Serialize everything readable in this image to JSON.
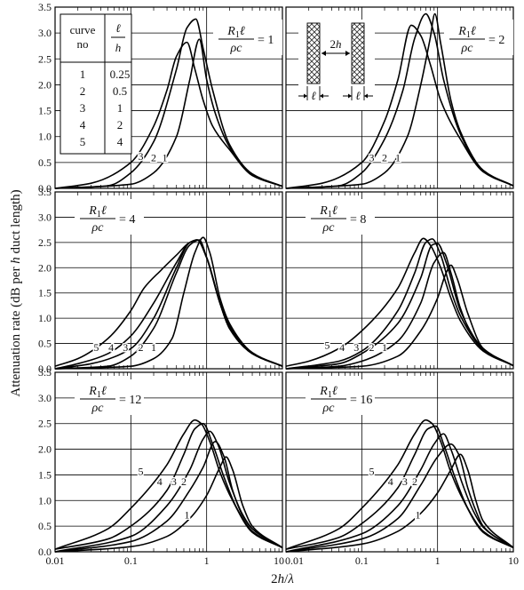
{
  "figure": {
    "ylabel_parts": [
      "Attenuation rate (dB per ",
      "h",
      " duct length)"
    ],
    "xlabel_parts": [
      "2",
      "h",
      "/",
      "λ"
    ],
    "x_tick_labels": [
      "0.01",
      "0.1",
      "1",
      "10"
    ],
    "y_tick_labels": [
      "0.0",
      "0.5",
      "1.0",
      "1.5",
      "2.0",
      "2.5",
      "3.0",
      "3.5"
    ],
    "param_eq": "=",
    "param_num_parts": [
      "R",
      "1",
      "ℓ"
    ],
    "param_den": "ρc"
  },
  "legend_table": {
    "col1_header_lines": [
      "curve",
      "no"
    ],
    "col2_header_num": "ℓ",
    "col2_header_den": "h",
    "rows": [
      {
        "curve": "1",
        "ratio": "0.25"
      },
      {
        "curve": "2",
        "ratio": "0.5"
      },
      {
        "curve": "3",
        "ratio": "1"
      },
      {
        "curve": "4",
        "ratio": "2"
      },
      {
        "curve": "5",
        "ratio": "4"
      }
    ]
  },
  "duct_diagram": {
    "width_label_parts": [
      "2",
      "h"
    ],
    "liner_label": "ℓ",
    "hatch_color": "#333333"
  },
  "chart_data": [
    {
      "type": "line",
      "panel": "top-left",
      "param_value": "1",
      "x_scale": "log",
      "xlim": [
        0.01,
        10
      ],
      "ylim": [
        0,
        3.5
      ],
      "grid": true,
      "series": [
        {
          "name": "1",
          "x": [
            0.01,
            0.1,
            0.2,
            0.4,
            0.6,
            0.8,
            1.0,
            1.3,
            2,
            4,
            10
          ],
          "y": [
            0.0,
            0.08,
            0.3,
            1.0,
            2.1,
            2.88,
            2.1,
            1.45,
            0.8,
            0.25,
            0.04
          ]
        },
        {
          "name": "2",
          "x": [
            0.01,
            0.05,
            0.1,
            0.2,
            0.4,
            0.55,
            0.72,
            0.9,
            1.2,
            2,
            4,
            10
          ],
          "y": [
            0.0,
            0.05,
            0.3,
            0.9,
            2.3,
            3.1,
            3.27,
            2.7,
            1.9,
            0.85,
            0.28,
            0.04
          ]
        },
        {
          "name": "3",
          "x": [
            0.01,
            0.03,
            0.1,
            0.2,
            0.3,
            0.4,
            0.55,
            0.7,
            0.9,
            1.2,
            2,
            4,
            10
          ],
          "y": [
            0.0,
            0.1,
            0.5,
            1.2,
            1.9,
            2.55,
            2.82,
            2.3,
            1.7,
            1.2,
            0.75,
            0.25,
            0.04
          ]
        }
      ],
      "curve_labels": [
        {
          "text": "1",
          "x": 0.28,
          "y": 0.52
        },
        {
          "text": "2",
          "x": 0.2,
          "y": 0.52
        },
        {
          "text": "3",
          "x": 0.135,
          "y": 0.55
        }
      ]
    },
    {
      "type": "line",
      "panel": "top-right",
      "param_value": "2",
      "x_scale": "log",
      "xlim": [
        0.01,
        10
      ],
      "ylim": [
        0,
        3.5
      ],
      "grid": true,
      "series": [
        {
          "name": "1",
          "x": [
            0.01,
            0.1,
            0.2,
            0.4,
            0.6,
            0.8,
            0.92,
            1.1,
            1.5,
            2,
            4,
            10
          ],
          "y": [
            0.0,
            0.08,
            0.3,
            1.0,
            2.0,
            2.9,
            3.37,
            2.8,
            1.7,
            1.1,
            0.35,
            0.05
          ]
        },
        {
          "name": "2",
          "x": [
            0.01,
            0.05,
            0.1,
            0.2,
            0.35,
            0.5,
            0.7,
            0.9,
            1.2,
            2,
            4,
            10
          ],
          "y": [
            0.0,
            0.05,
            0.3,
            0.95,
            1.9,
            2.9,
            3.37,
            3.0,
            2.1,
            1.05,
            0.33,
            0.05
          ]
        },
        {
          "name": "3",
          "x": [
            0.01,
            0.03,
            0.1,
            0.2,
            0.3,
            0.45,
            0.6,
            0.8,
            1.1,
            2,
            4,
            10
          ],
          "y": [
            0.0,
            0.1,
            0.5,
            1.3,
            2.1,
            3.15,
            2.95,
            2.4,
            1.7,
            0.95,
            0.32,
            0.05
          ]
        }
      ],
      "curve_labels": [
        {
          "text": "1",
          "x": 0.3,
          "y": 0.52
        },
        {
          "text": "2",
          "x": 0.2,
          "y": 0.52
        },
        {
          "text": "3",
          "x": 0.135,
          "y": 0.52
        }
      ]
    },
    {
      "type": "line",
      "panel": "middle-left",
      "param_value": "4",
      "x_scale": "log",
      "xlim": [
        0.01,
        10
      ],
      "ylim": [
        0,
        3.5
      ],
      "grid": true,
      "series": [
        {
          "name": "1",
          "x": [
            0.01,
            0.1,
            0.2,
            0.35,
            0.5,
            0.7,
            0.9,
            1.1,
            1.5,
            2,
            4,
            10
          ],
          "y": [
            0.0,
            0.05,
            0.2,
            0.6,
            1.5,
            2.3,
            2.6,
            2.3,
            1.4,
            0.9,
            0.32,
            0.05
          ]
        },
        {
          "name": "2",
          "x": [
            0.01,
            0.05,
            0.1,
            0.2,
            0.4,
            0.6,
            0.8,
            1.0,
            1.5,
            2,
            4,
            10
          ],
          "y": [
            0.0,
            0.05,
            0.25,
            0.8,
            1.9,
            2.45,
            2.55,
            2.2,
            1.3,
            0.85,
            0.3,
            0.05
          ]
        },
        {
          "name": "3",
          "x": [
            0.01,
            0.03,
            0.1,
            0.2,
            0.4,
            0.6,
            0.75,
            1.0,
            1.5,
            2,
            4,
            10
          ],
          "y": [
            0.0,
            0.1,
            0.4,
            1.0,
            2.0,
            2.5,
            2.55,
            2.2,
            1.3,
            0.8,
            0.3,
            0.05
          ]
        },
        {
          "name": "4",
          "x": [
            0.01,
            0.02,
            0.05,
            0.1,
            0.2,
            0.4,
            0.6,
            0.75,
            1.0,
            1.5,
            2,
            4,
            10
          ],
          "y": [
            0.0,
            0.1,
            0.3,
            0.65,
            1.3,
            2.1,
            2.5,
            2.55,
            2.2,
            1.3,
            0.8,
            0.3,
            0.05
          ]
        },
        {
          "name": "5",
          "x": [
            0.01,
            0.02,
            0.05,
            0.1,
            0.15,
            0.25,
            0.4,
            0.6,
            0.75,
            1.0,
            1.5,
            2,
            4,
            10
          ],
          "y": [
            0.05,
            0.2,
            0.6,
            1.15,
            1.6,
            1.95,
            2.25,
            2.5,
            2.55,
            2.2,
            1.3,
            0.8,
            0.3,
            0.05
          ]
        }
      ],
      "curve_labels": [
        {
          "text": "1",
          "x": 0.2,
          "y": 0.35
        },
        {
          "text": "2",
          "x": 0.135,
          "y": 0.35
        },
        {
          "text": "3",
          "x": 0.085,
          "y": 0.35
        },
        {
          "text": "4",
          "x": 0.055,
          "y": 0.35
        },
        {
          "text": "5",
          "x": 0.035,
          "y": 0.35
        }
      ]
    },
    {
      "type": "line",
      "panel": "middle-right",
      "param_value": "8",
      "x_scale": "log",
      "xlim": [
        0.01,
        10
      ],
      "ylim": [
        0,
        3.5
      ],
      "grid": true,
      "series": [
        {
          "name": "1",
          "x": [
            0.01,
            0.1,
            0.3,
            0.6,
            1.0,
            1.3,
            1.5,
            1.8,
            2.5,
            4,
            10
          ],
          "y": [
            0.0,
            0.05,
            0.25,
            0.75,
            1.4,
            1.9,
            2.05,
            1.8,
            1.1,
            0.4,
            0.06
          ]
        },
        {
          "name": "2",
          "x": [
            0.01,
            0.05,
            0.1,
            0.3,
            0.6,
            0.9,
            1.2,
            1.5,
            2,
            3,
            4,
            10
          ],
          "y": [
            0.0,
            0.05,
            0.15,
            0.55,
            1.3,
            2.1,
            2.3,
            1.9,
            1.2,
            0.6,
            0.38,
            0.06
          ]
        },
        {
          "name": "3",
          "x": [
            0.01,
            0.05,
            0.1,
            0.3,
            0.6,
            0.85,
            1.0,
            1.3,
            2,
            4,
            10
          ],
          "y": [
            0.0,
            0.1,
            0.3,
            0.9,
            1.8,
            2.45,
            2.48,
            2.1,
            1.15,
            0.4,
            0.06
          ]
        },
        {
          "name": "4",
          "x": [
            0.01,
            0.05,
            0.1,
            0.3,
            0.5,
            0.7,
            0.85,
            1.1,
            1.5,
            2,
            4,
            10
          ],
          "y": [
            0.0,
            0.15,
            0.35,
            1.15,
            1.9,
            2.5,
            2.57,
            2.25,
            1.55,
            1.05,
            0.38,
            0.06
          ]
        },
        {
          "name": "5",
          "x": [
            0.01,
            0.02,
            0.05,
            0.1,
            0.3,
            0.5,
            0.65,
            0.8,
            1.1,
            1.5,
            2,
            4,
            10
          ],
          "y": [
            0.05,
            0.15,
            0.4,
            0.75,
            1.6,
            2.3,
            2.58,
            2.45,
            2.0,
            1.4,
            0.95,
            0.35,
            0.06
          ]
        }
      ],
      "curve_labels": [
        {
          "text": "1",
          "x": 0.2,
          "y": 0.35
        },
        {
          "text": "2",
          "x": 0.135,
          "y": 0.35
        },
        {
          "text": "3",
          "x": 0.085,
          "y": 0.35
        },
        {
          "text": "4",
          "x": 0.055,
          "y": 0.35
        },
        {
          "text": "5",
          "x": 0.035,
          "y": 0.4
        }
      ]
    },
    {
      "type": "line",
      "panel": "bottom-left",
      "param_value": "12",
      "x_scale": "log",
      "xlim": [
        0.01,
        10
      ],
      "ylim": [
        0,
        3.5
      ],
      "grid": true,
      "series": [
        {
          "name": "1",
          "x": [
            0.01,
            0.1,
            0.3,
            0.6,
            1.0,
            1.5,
            1.8,
            2.2,
            3,
            4,
            10
          ],
          "y": [
            0.0,
            0.1,
            0.3,
            0.65,
            1.1,
            1.65,
            1.85,
            1.6,
            0.9,
            0.5,
            0.08
          ]
        },
        {
          "name": "2",
          "x": [
            0.01,
            0.1,
            0.3,
            0.6,
            0.9,
            1.3,
            1.7,
            2.2,
            3,
            4,
            10
          ],
          "y": [
            0.0,
            0.2,
            0.6,
            1.2,
            1.65,
            2.15,
            1.85,
            1.2,
            0.7,
            0.45,
            0.08
          ]
        },
        {
          "name": "3",
          "x": [
            0.01,
            0.1,
            0.3,
            0.6,
            0.9,
            1.1,
            1.4,
            2,
            3,
            4,
            10
          ],
          "y": [
            0.0,
            0.3,
            0.9,
            1.6,
            2.2,
            2.35,
            2.1,
            1.35,
            0.72,
            0.45,
            0.08
          ]
        },
        {
          "name": "4",
          "x": [
            0.01,
            0.05,
            0.1,
            0.3,
            0.5,
            0.7,
            0.9,
            1.2,
            1.7,
            2.5,
            4,
            10
          ],
          "y": [
            0.05,
            0.25,
            0.5,
            1.2,
            1.9,
            2.4,
            2.5,
            2.1,
            1.45,
            0.85,
            0.4,
            0.08
          ]
        },
        {
          "name": "5",
          "x": [
            0.01,
            0.05,
            0.1,
            0.3,
            0.5,
            0.7,
            0.85,
            1.1,
            1.5,
            2.2,
            4,
            10
          ],
          "y": [
            0.05,
            0.45,
            0.85,
            1.7,
            2.3,
            2.57,
            2.5,
            2.15,
            1.55,
            1.0,
            0.38,
            0.08
          ]
        }
      ],
      "curve_labels": [
        {
          "text": "1",
          "x": 0.55,
          "y": 0.65
        },
        {
          "text": "2",
          "x": 0.5,
          "y": 1.3
        },
        {
          "text": "3",
          "x": 0.37,
          "y": 1.3
        },
        {
          "text": "4",
          "x": 0.24,
          "y": 1.3
        },
        {
          "text": "5",
          "x": 0.135,
          "y": 1.5
        }
      ]
    },
    {
      "type": "line",
      "panel": "bottom-right",
      "param_value": "16",
      "x_scale": "log",
      "xlim": [
        0.01,
        10
      ],
      "ylim": [
        0,
        3.5
      ],
      "grid": true,
      "series": [
        {
          "name": "1",
          "x": [
            0.01,
            0.1,
            0.3,
            0.6,
            1.0,
            1.5,
            2.0,
            2.5,
            3.2,
            4,
            10
          ],
          "y": [
            0.0,
            0.15,
            0.4,
            0.75,
            1.15,
            1.6,
            1.9,
            1.6,
            1.0,
            0.6,
            0.08
          ]
        },
        {
          "name": "2",
          "x": [
            0.01,
            0.1,
            0.3,
            0.6,
            1.0,
            1.5,
            1.9,
            2.5,
            3.2,
            4,
            10
          ],
          "y": [
            0.0,
            0.25,
            0.65,
            1.3,
            1.85,
            2.1,
            1.9,
            1.25,
            0.8,
            0.5,
            0.08
          ]
        },
        {
          "name": "3",
          "x": [
            0.01,
            0.1,
            0.3,
            0.6,
            0.9,
            1.2,
            1.5,
            2.1,
            3,
            4,
            10
          ],
          "y": [
            0.0,
            0.35,
            0.9,
            1.6,
            2.1,
            2.3,
            2.0,
            1.35,
            0.78,
            0.48,
            0.08
          ]
        },
        {
          "name": "4",
          "x": [
            0.01,
            0.05,
            0.1,
            0.3,
            0.5,
            0.75,
            0.95,
            1.2,
            1.7,
            2.5,
            4,
            10
          ],
          "y": [
            0.05,
            0.28,
            0.55,
            1.25,
            1.9,
            2.4,
            2.45,
            2.1,
            1.45,
            0.85,
            0.4,
            0.08
          ]
        },
        {
          "name": "5",
          "x": [
            0.01,
            0.05,
            0.1,
            0.3,
            0.5,
            0.7,
            0.85,
            1.1,
            1.5,
            2.2,
            4,
            10
          ],
          "y": [
            0.05,
            0.45,
            0.85,
            1.7,
            2.3,
            2.57,
            2.5,
            2.15,
            1.55,
            1.0,
            0.38,
            0.08
          ]
        }
      ],
      "curve_labels": [
        {
          "text": "1",
          "x": 0.55,
          "y": 0.65
        },
        {
          "text": "2",
          "x": 0.5,
          "y": 1.3
        },
        {
          "text": "3",
          "x": 0.37,
          "y": 1.3
        },
        {
          "text": "4",
          "x": 0.24,
          "y": 1.3
        },
        {
          "text": "5",
          "x": 0.135,
          "y": 1.5
        }
      ]
    }
  ]
}
